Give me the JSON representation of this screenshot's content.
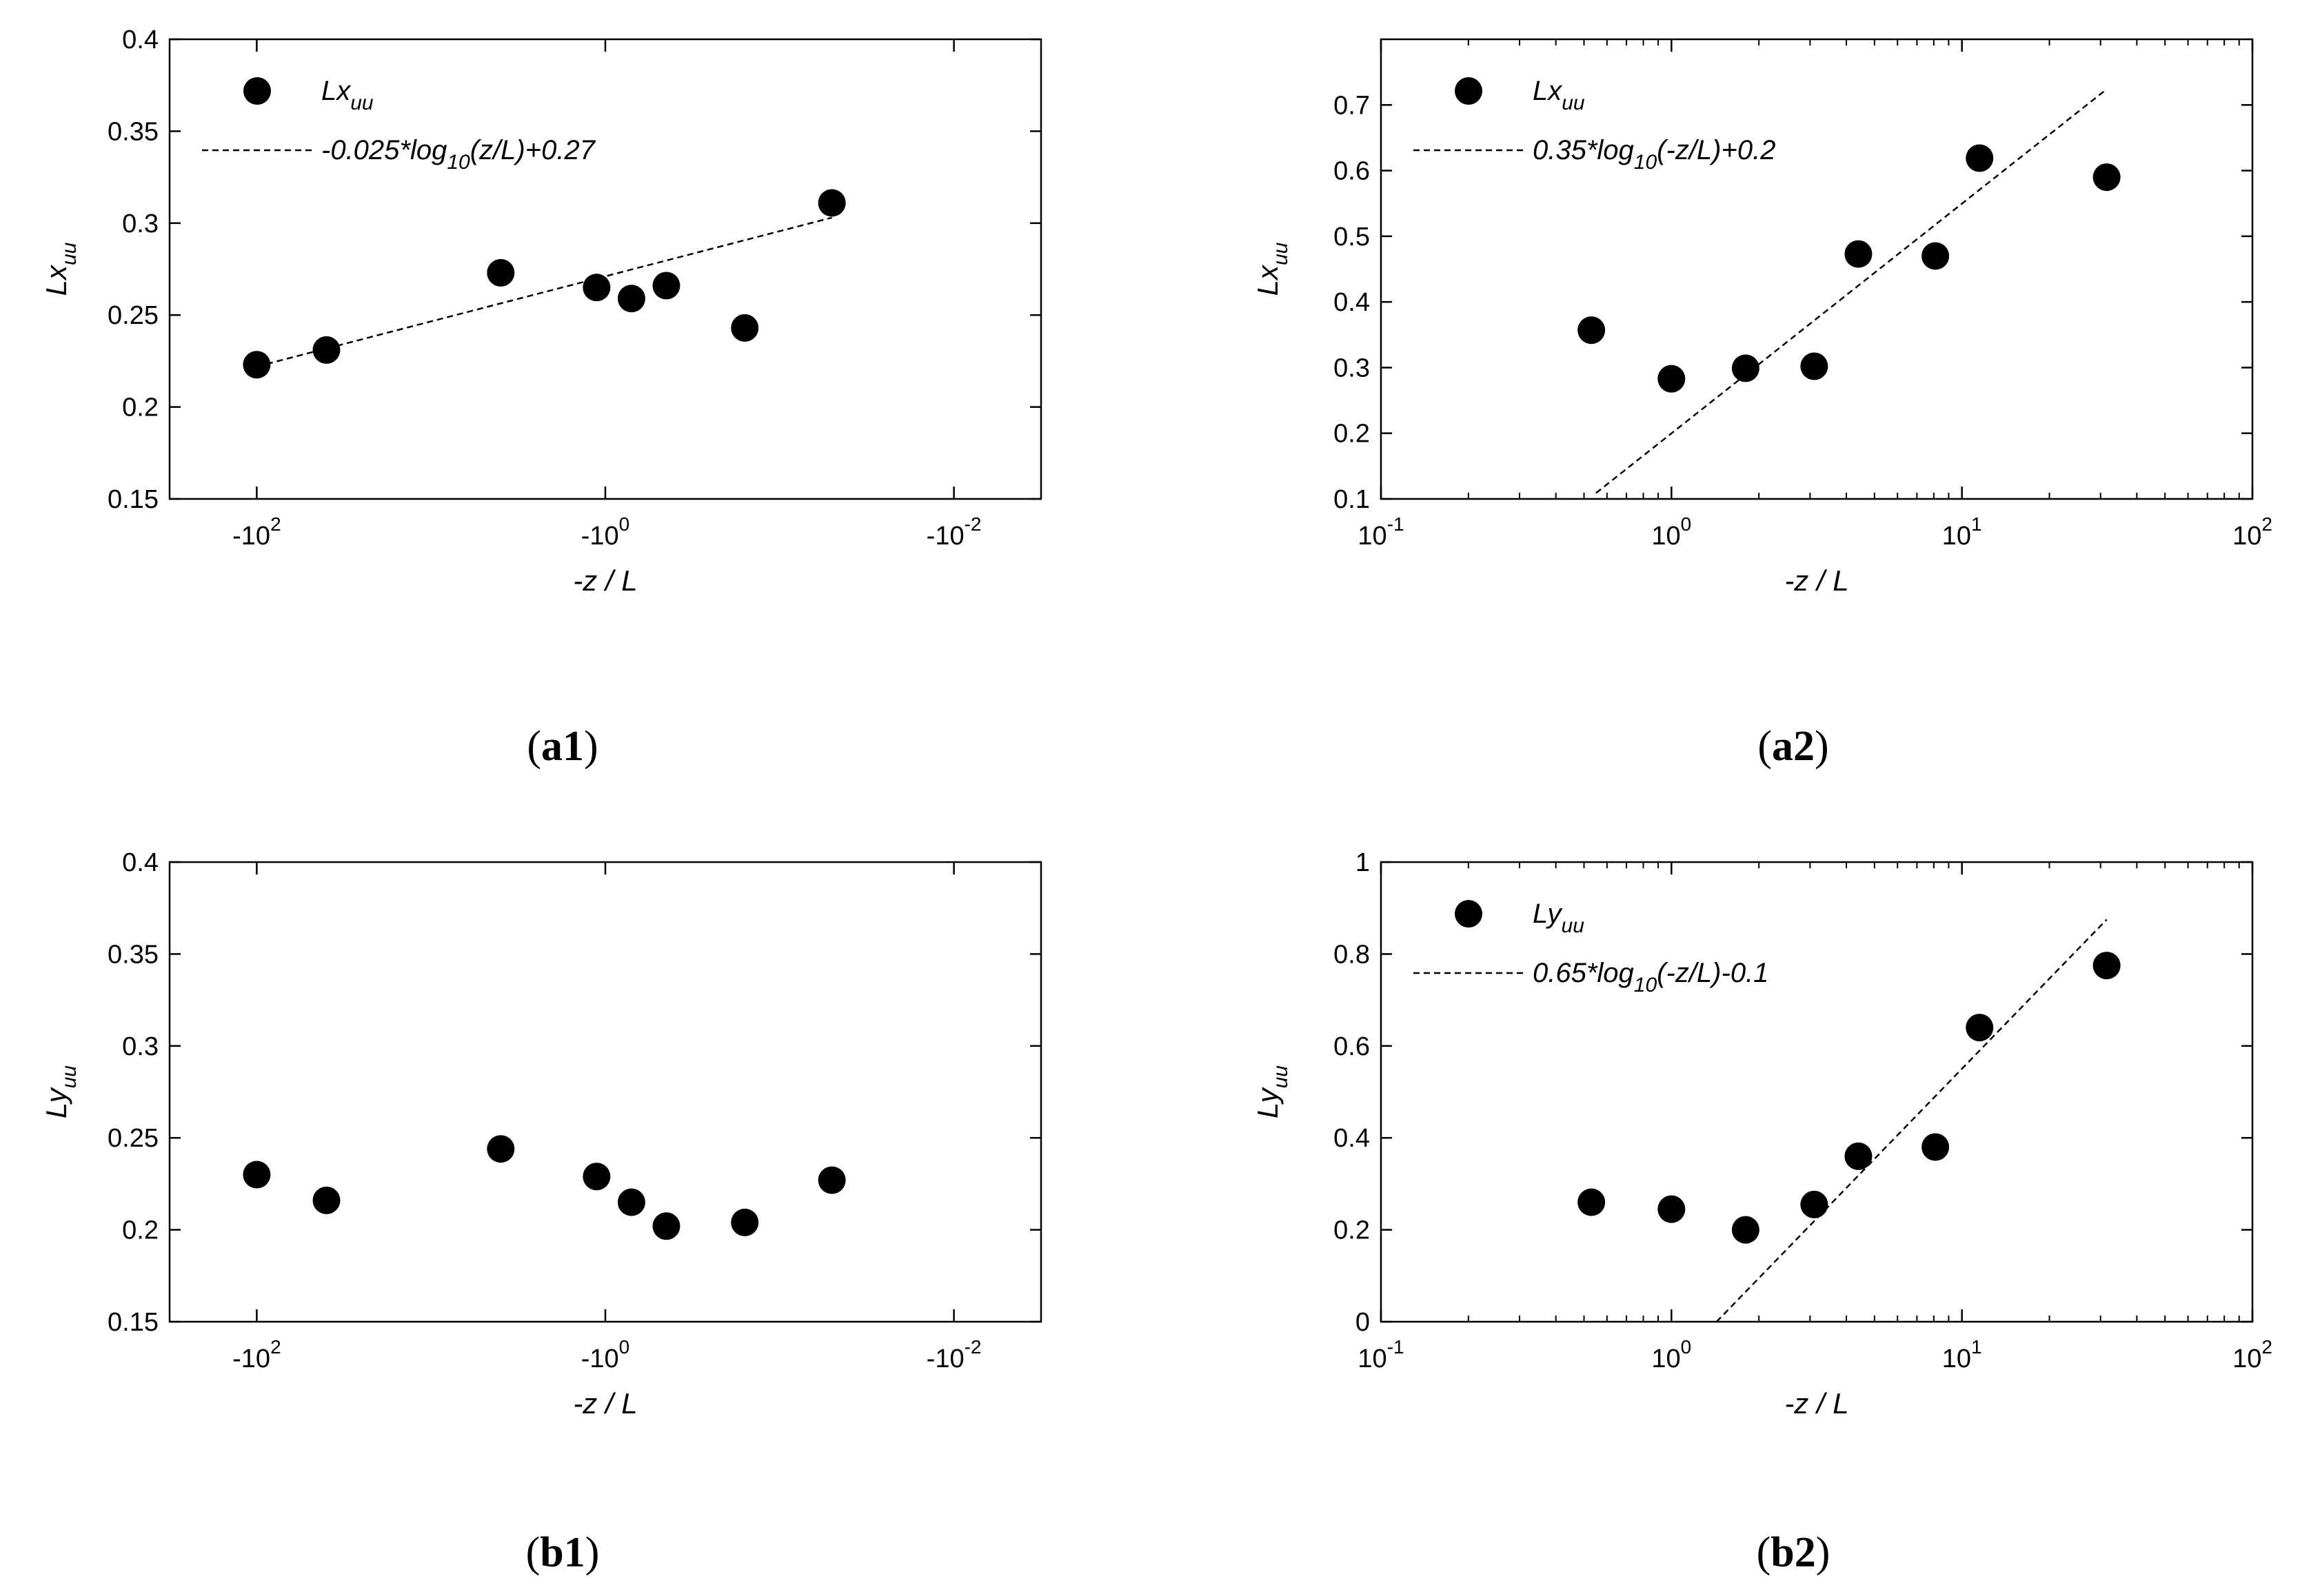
{
  "colors": {
    "ink": "#000000",
    "background": "#ffffff"
  },
  "chart_data": [
    {
      "id": "a1",
      "type": "scatter",
      "caption": "a1",
      "xlabel": "-z / L",
      "ylabel": "Lx",
      "ylabel_sub": "uu",
      "xscale": "log-negative",
      "xlim_exponents": [
        2.5,
        -2.5
      ],
      "xticks": [
        {
          "exp": 2,
          "label": "-10",
          "sup": "2"
        },
        {
          "exp": 0,
          "label": "-10",
          "sup": "0"
        },
        {
          "exp": -2,
          "label": "-10",
          "sup": "-2"
        }
      ],
      "ylim": [
        0.15,
        0.4
      ],
      "yticks": [
        "0.15",
        "0.2",
        "0.25",
        "0.3",
        "0.35",
        "0.4"
      ],
      "legend": {
        "marker_label": "Lx",
        "marker_sub": "uu",
        "line_label": "-0.025*log",
        "line_sub": "10",
        "line_rest": "(z/L)+0.27",
        "placement": "top-left"
      },
      "points_exp": [
        2.0,
        1.6,
        0.6,
        0.05,
        -0.15,
        -0.35,
        -0.8,
        -1.3
      ],
      "points_y": [
        0.223,
        0.231,
        0.273,
        0.265,
        0.259,
        0.266,
        0.243,
        0.311
      ],
      "fit": {
        "x_exp": [
          2.0,
          -1.3
        ],
        "y": [
          0.222,
          0.303
        ]
      }
    },
    {
      "id": "a2",
      "type": "scatter",
      "caption": "a2",
      "xlabel": "-z / L",
      "ylabel": "Lx",
      "ylabel_sub": "uu",
      "xscale": "log",
      "xlim_exponents": [
        -1,
        2
      ],
      "xticks": [
        {
          "exp": -1,
          "label": "10",
          "sup": "-1"
        },
        {
          "exp": 0,
          "label": "10",
          "sup": "0"
        },
        {
          "exp": 1,
          "label": "10",
          "sup": "1"
        },
        {
          "exp": 2,
          "label": "10",
          "sup": "2"
        }
      ],
      "ylim": [
        0.1,
        0.8
      ],
      "yticks": [
        "0.1",
        "0.2",
        "0.3",
        "0.4",
        "0.5",
        "0.6",
        "0.7"
      ],
      "legend": {
        "marker_label": "Lx",
        "marker_sub": "uu",
        "line_label": "0.35*log",
        "line_sub": "10",
        "line_rest": "(-z/L)+0.2",
        "placement": "top-left"
      },
      "x": [
        0.53,
        1.0,
        1.8,
        3.1,
        4.4,
        8.1,
        11.5,
        31.5
      ],
      "y": [
        0.357,
        0.283,
        0.299,
        0.302,
        0.473,
        0.47,
        0.619,
        0.59
      ],
      "fit": {
        "x": [
          0.55,
          31.5
        ],
        "y": [
          0.109,
          0.724
        ]
      }
    },
    {
      "id": "b1",
      "type": "scatter",
      "caption": "b1",
      "xlabel": "-z / L",
      "ylabel": "Ly",
      "ylabel_sub": "uu",
      "xscale": "log-negative",
      "xlim_exponents": [
        2.5,
        -2.5
      ],
      "xticks": [
        {
          "exp": 2,
          "label": "-10",
          "sup": "2"
        },
        {
          "exp": 0,
          "label": "-10",
          "sup": "0"
        },
        {
          "exp": -2,
          "label": "-10",
          "sup": "-2"
        }
      ],
      "ylim": [
        0.15,
        0.4
      ],
      "yticks": [
        "0.15",
        "0.2",
        "0.25",
        "0.3",
        "0.35",
        "0.4"
      ],
      "points_exp": [
        2.0,
        1.6,
        0.6,
        0.05,
        -0.15,
        -0.35,
        -0.8,
        -1.3
      ],
      "points_y": [
        0.23,
        0.216,
        0.244,
        0.229,
        0.215,
        0.202,
        0.204,
        0.227
      ]
    },
    {
      "id": "b2",
      "type": "scatter",
      "caption": "b2",
      "xlabel": "-z / L",
      "ylabel": "Ly",
      "ylabel_sub": "uu",
      "xscale": "log",
      "xlim_exponents": [
        -1,
        2
      ],
      "xticks": [
        {
          "exp": -1,
          "label": "10",
          "sup": "-1"
        },
        {
          "exp": 0,
          "label": "10",
          "sup": "0"
        },
        {
          "exp": 1,
          "label": "10",
          "sup": "1"
        },
        {
          "exp": 2,
          "label": "10",
          "sup": "2"
        }
      ],
      "ylim": [
        0,
        1
      ],
      "yticks": [
        "0",
        "0.2",
        "0.4",
        "0.6",
        "0.8",
        "1"
      ],
      "legend": {
        "marker_label": "Ly",
        "marker_sub": "uu",
        "line_label": "0.65*log",
        "line_sub": "10",
        "line_rest": "(-z/L)-0.1",
        "placement": "top-left"
      },
      "x": [
        0.53,
        1.0,
        1.8,
        3.1,
        4.4,
        8.1,
        11.5,
        31.5
      ],
      "y": [
        0.26,
        0.245,
        0.2,
        0.255,
        0.36,
        0.38,
        0.64,
        0.775
      ],
      "fit": {
        "x": [
          1.43,
          31.5
        ],
        "y": [
          0.0,
          0.875
        ]
      }
    }
  ]
}
